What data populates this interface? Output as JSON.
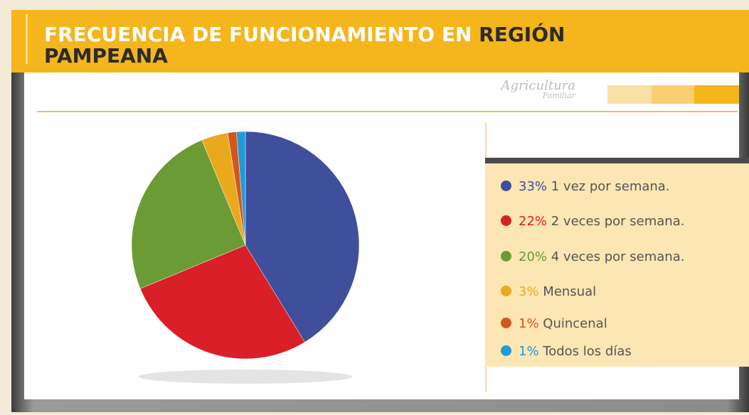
{
  "chart_data": {
    "type": "pie",
    "title": "FRECUENCIA DE FUNCIONAMIENTO EN",
    "title_highlight": "REGIÓN PAMPEANA",
    "categories": [
      "1 vez por semana.",
      "2 veces por semana.",
      "4 veces por semana.",
      "Mensual",
      "Quincenal",
      "Todos los días"
    ],
    "values": [
      33,
      22,
      20,
      3,
      1,
      1
    ],
    "value_labels": [
      "33%",
      "22%",
      "20%",
      "3%",
      "1%",
      "1%"
    ],
    "colors": [
      "#3f4f9c",
      "#d91f27",
      "#6b9b34",
      "#e9a91d",
      "#d4561f",
      "#1f9bd7"
    ]
  },
  "brand": [
    "Agricultura",
    "Familiar"
  ]
}
